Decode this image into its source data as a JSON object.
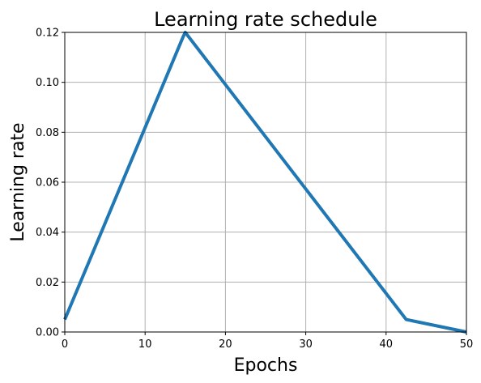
{
  "chart_data": {
    "type": "line",
    "title": "Learning rate schedule",
    "xlabel": "Epochs",
    "ylabel": "Learning rate",
    "xlim": [
      0,
      50
    ],
    "ylim": [
      0,
      0.12
    ],
    "grid": true,
    "x_ticks": [
      0,
      10,
      20,
      30,
      40,
      50
    ],
    "x_tick_labels": [
      "0",
      "10",
      "20",
      "30",
      "40",
      "50"
    ],
    "y_ticks": [
      0.0,
      0.02,
      0.04,
      0.06,
      0.08,
      0.1,
      0.12
    ],
    "y_tick_labels": [
      "0.00",
      "0.02",
      "0.04",
      "0.06",
      "0.08",
      "0.10",
      "0.12"
    ],
    "series": [
      {
        "color": "#1f77b4",
        "x": [
          0,
          14.7,
          15,
          42.5,
          50
        ],
        "y": [
          0.005,
          0.118,
          0.12,
          0.005,
          0.0
        ]
      }
    ]
  }
}
